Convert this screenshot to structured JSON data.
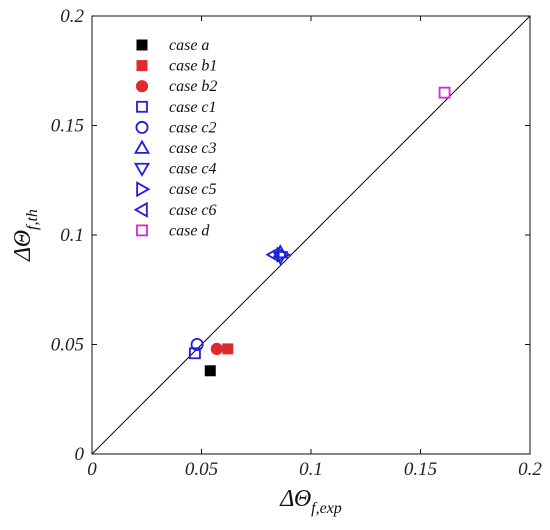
{
  "chart_data": {
    "type": "scatter",
    "title": "",
    "xlabel": {
      "main": "ΔΘ",
      "sub": "f,exp"
    },
    "ylabel": {
      "main": "ΔΘ",
      "sub": "f,th"
    },
    "xlim": [
      0,
      0.2
    ],
    "ylim": [
      0,
      0.2
    ],
    "xticks": [
      0,
      0.05,
      0.1,
      0.15,
      0.2
    ],
    "yticks": [
      0,
      0.05,
      0.1,
      0.15,
      0.2
    ],
    "xtick_labels": [
      "0",
      "0.05",
      "0.1",
      "0.15",
      "0.2"
    ],
    "ytick_labels": [
      "0",
      "0.05",
      "0.1",
      "0.15",
      "0.2"
    ],
    "grid": false,
    "reference_line": {
      "x": [
        0,
        0.2
      ],
      "y": [
        0,
        0.2
      ]
    },
    "legend_position": "top-left",
    "series": [
      {
        "name": "case a",
        "marker": "square-filled",
        "color": "#000000",
        "x": [
          0.054
        ],
        "y": [
          0.038
        ]
      },
      {
        "name": "case b1",
        "marker": "square-filled",
        "color": "#e0292f",
        "x": [
          0.062
        ],
        "y": [
          0.048
        ]
      },
      {
        "name": "case b2",
        "marker": "circle-filled",
        "color": "#e0292f",
        "x": [
          0.057
        ],
        "y": [
          0.048
        ]
      },
      {
        "name": "case c1",
        "marker": "square-open",
        "color": "#1f1fe0",
        "x": [
          0.047
        ],
        "y": [
          0.046
        ]
      },
      {
        "name": "case c2",
        "marker": "circle-open",
        "color": "#1f1fe0",
        "x": [
          0.048
        ],
        "y": [
          0.05
        ]
      },
      {
        "name": "case c3",
        "marker": "triangle-up",
        "color": "#1f1fe0",
        "x": [
          0.086
        ],
        "y": [
          0.092
        ]
      },
      {
        "name": "case c4",
        "marker": "triangle-down",
        "color": "#1f1fe0",
        "x": [
          0.086
        ],
        "y": [
          0.09
        ]
      },
      {
        "name": "case c5",
        "marker": "triangle-right",
        "color": "#1f1fe0",
        "x": [
          0.087
        ],
        "y": [
          0.091
        ]
      },
      {
        "name": "case c6",
        "marker": "triangle-left",
        "color": "#1f1fe0",
        "x": [
          0.083
        ],
        "y": [
          0.091
        ]
      },
      {
        "name": "case d",
        "marker": "square-open",
        "color": "#e020e0",
        "x": [
          0.161
        ],
        "y": [
          0.165
        ]
      }
    ]
  }
}
